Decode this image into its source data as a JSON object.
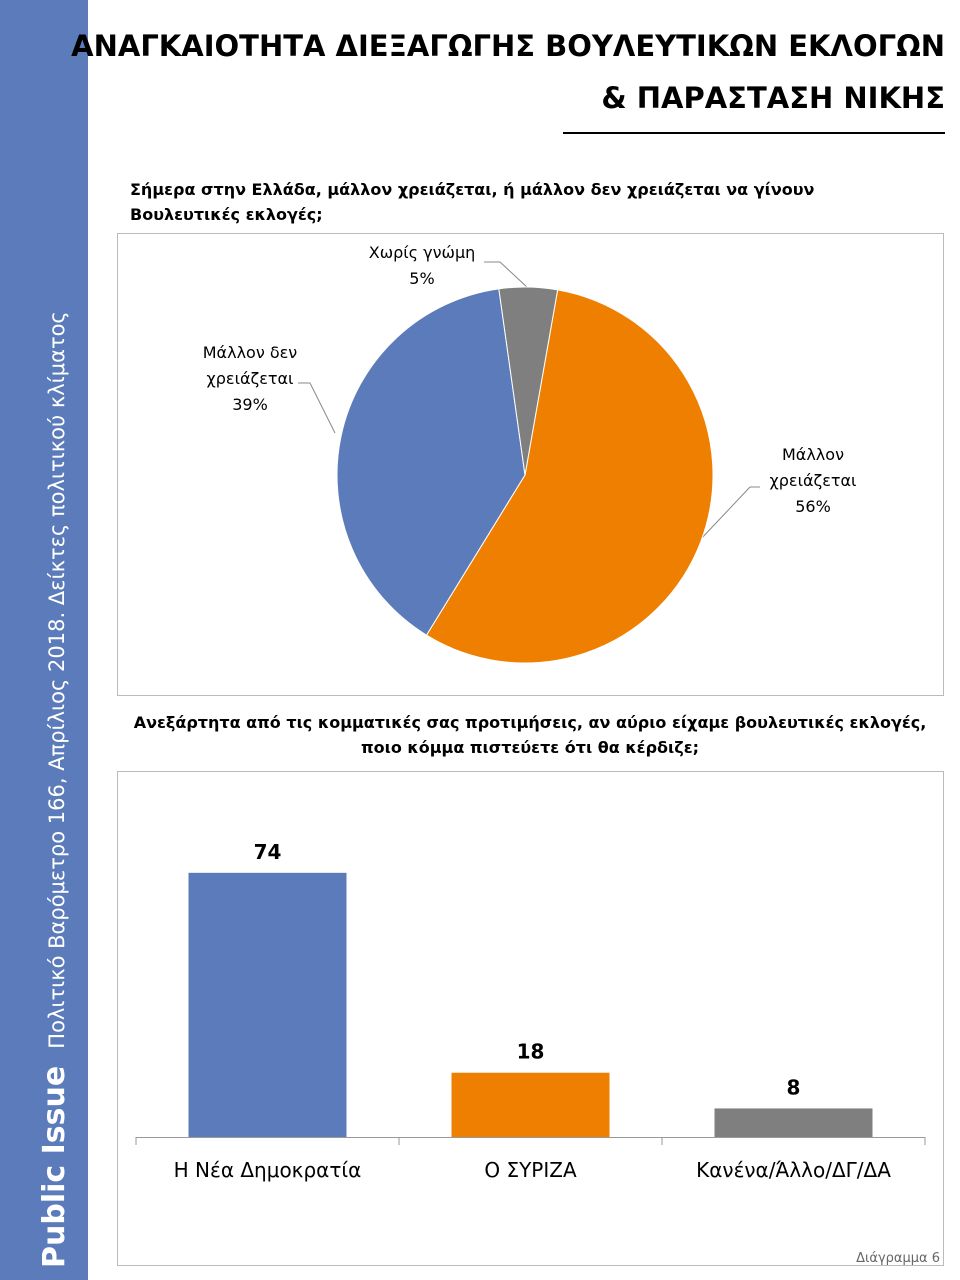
{
  "sidebar": {
    "brand": "Public Issue",
    "subtitle": "Πολιτικό Βαρόμετρο 166, Απρίλιος 2018. Δείκτες πολιτικού κλίματος"
  },
  "header": {
    "title_line1": "ΑΝΑΓΚΑΙΟΤΗΤΑ ΔΙΕΞΑΓΩΓΗΣ ΒΟΥΛΕΥΤΙΚΩΝ ΕΚΛΟΓΩΝ",
    "title_line2": "& ΠΑΡΑΣΤΑΣΗ ΝΙΚΗΣ"
  },
  "chart_data": [
    {
      "type": "pie",
      "title": "Σήμερα στην Ελλάδα, μάλλον χρειάζεται, ή μάλλον δεν χρειάζεται να γίνουν Βουλευτικές εκλογές;",
      "categories": [
        "Μάλλον χρειάζεται",
        "Μάλλον δεν χρειάζεται",
        "Χωρίς γνώμη"
      ],
      "values": [
        56,
        39,
        5
      ],
      "value_labels": [
        "56%",
        "39%",
        "5%"
      ],
      "colors": [
        "#ee7f00",
        "#5b7bba",
        "#7f7f7f"
      ]
    },
    {
      "type": "bar",
      "title": "Ανεξάρτητα από τις κομματικές σας προτιμήσεις, αν αύριο είχαμε βουλευτικές εκλογές, ποιο κόμμα πιστεύετε ότι θα κέρδιζε;",
      "categories": [
        "Η Νέα Δημοκρατία",
        "Ο ΣΥΡΙΖΑ",
        "Κανένα/Άλλο/ΔΓ/ΔΑ"
      ],
      "values": [
        74,
        18,
        8
      ],
      "colors": [
        "#5b7bba",
        "#ee7f00",
        "#7f7f7f"
      ]
    }
  ],
  "footer": "Διάγραμμα 6"
}
